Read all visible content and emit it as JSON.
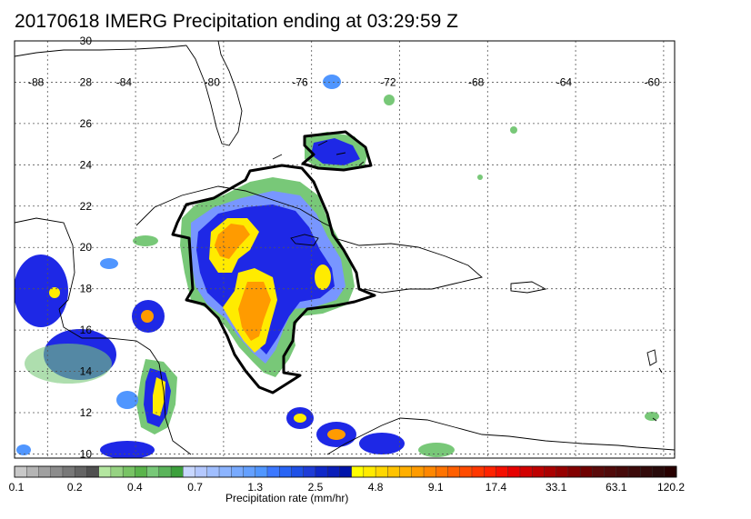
{
  "title": "20170618 IMERG Precipitation ending at 03:29:59 Z",
  "lon_labels": [
    "-88",
    "-84",
    "-80",
    "-76",
    "-72",
    "-68",
    "-64",
    "-60"
  ],
  "lat_labels": [
    "30",
    "28",
    "26",
    "24",
    "22",
    "20",
    "18",
    "16",
    "14",
    "12",
    "10"
  ],
  "lon_range": [
    -89.5,
    -59.5
  ],
  "lat_range": [
    9.8,
    30
  ],
  "colorbar": {
    "title": "Precipitation rate (mm/hr)",
    "labels": [
      "0.1",
      "0.2",
      "0.4",
      "0.7",
      "1.3",
      "2.5",
      "4.8",
      "9.1",
      "17.4",
      "33.1",
      "63.1",
      "120.2"
    ],
    "colors": [
      "#c8c8c8",
      "#b4b4b4",
      "#a0a0a0",
      "#8c8c8c",
      "#787878",
      "#646464",
      "#505050",
      "#b4e6a0",
      "#96d282",
      "#78c364",
      "#5ab44b",
      "#78c878",
      "#5ab45a",
      "#3ca03c",
      "#c8d7ff",
      "#b4c8ff",
      "#a0beff",
      "#8cb4ff",
      "#78aaff",
      "#64a0ff",
      "#5096ff",
      "#3c78ff",
      "#2864f5",
      "#1e50e6",
      "#1e3cd7",
      "#0f28c8",
      "#0a1eb9",
      "#0014aa",
      "#ffff00",
      "#ffeb00",
      "#ffd700",
      "#ffc300",
      "#ffaf00",
      "#ff9b00",
      "#ff8700",
      "#ff7300",
      "#ff5f00",
      "#ff4b00",
      "#ff3700",
      "#ff2300",
      "#f50f00",
      "#e60000",
      "#d20000",
      "#be0000",
      "#aa0000",
      "#960000",
      "#820000",
      "#6e0000",
      "#5a0a0a",
      "#500a0a",
      "#460a0a",
      "#3c0a0a",
      "#320a0a",
      "#280a0a",
      "#280000"
    ]
  },
  "rain_colors": {
    "light": "#78c878",
    "moderate": "#7896ff",
    "heavy": "#1e28e6",
    "very_heavy": "#ffeb00",
    "intense": "#ff9b00"
  }
}
